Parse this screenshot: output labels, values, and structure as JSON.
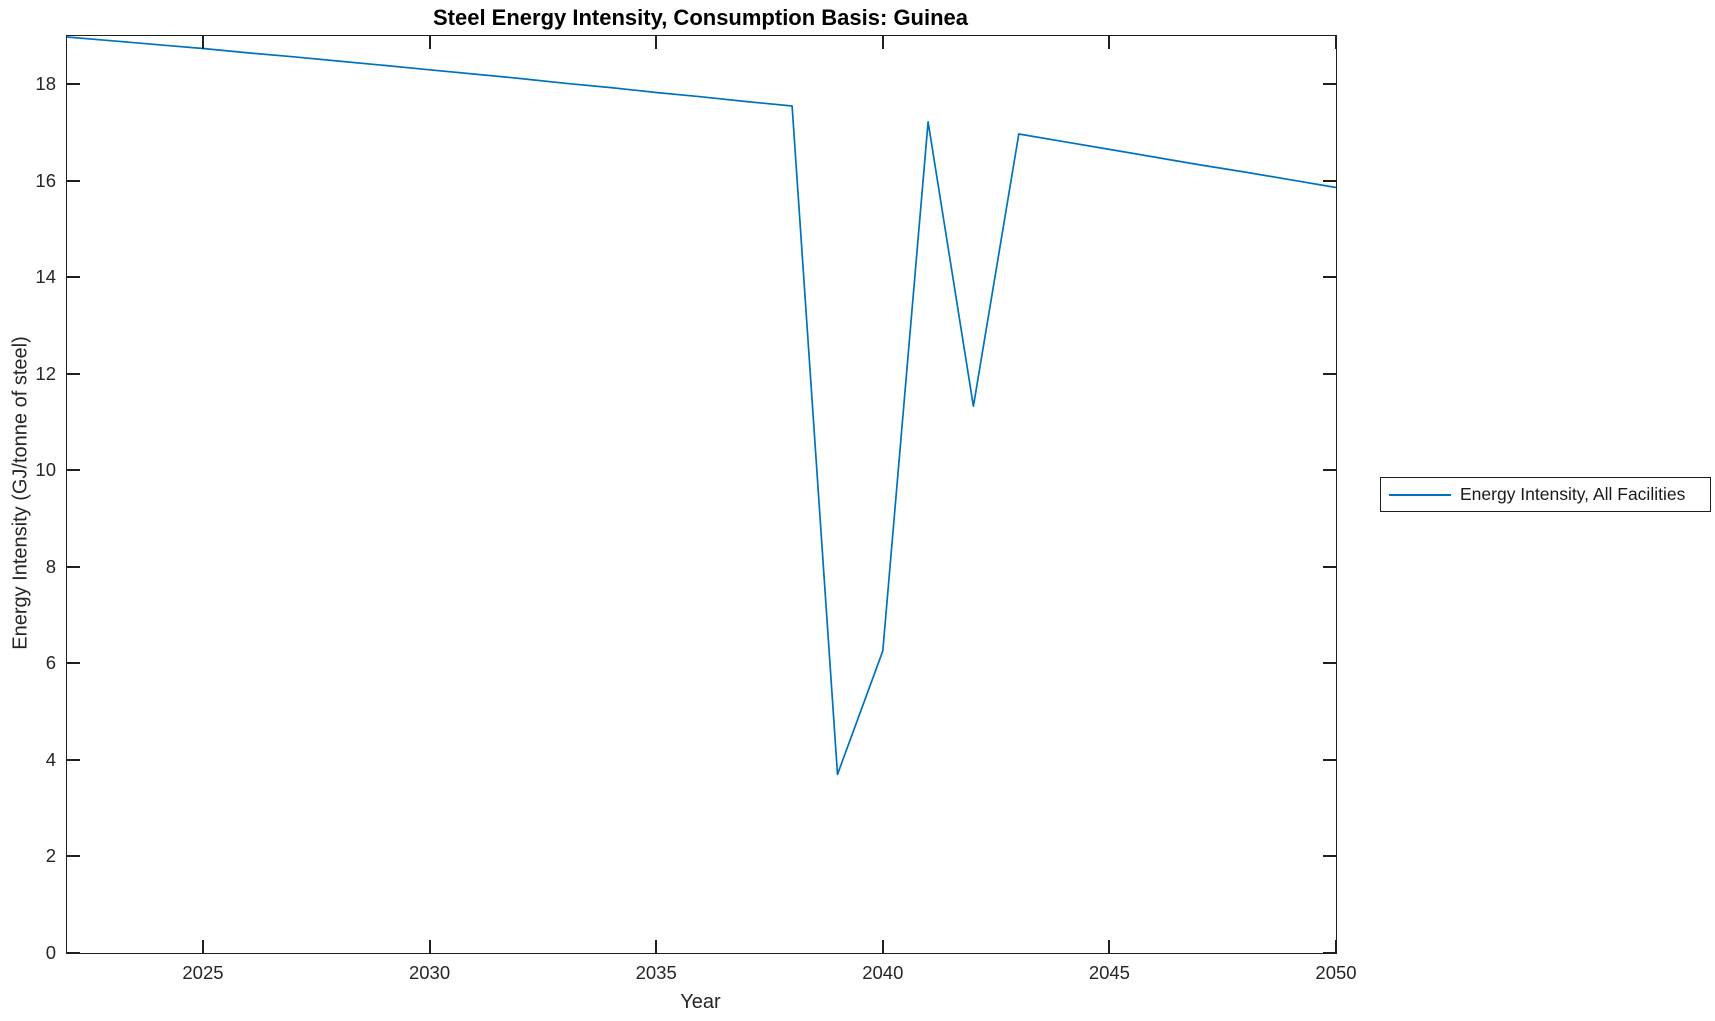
{
  "chart_data": {
    "type": "line",
    "title": "Steel Energy Intensity, Consumption Basis: Guinea",
    "xlabel": "Year",
    "ylabel": "Energy Intensity (GJ/tonne of steel)",
    "xlim": [
      2022,
      2050
    ],
    "ylim": [
      0,
      19
    ],
    "x_ticks": [
      2025,
      2030,
      2035,
      2040,
      2045,
      2050
    ],
    "y_ticks": [
      0,
      2,
      4,
      6,
      8,
      10,
      12,
      14,
      16,
      18
    ],
    "grid": false,
    "box": true,
    "tick_direction": "in",
    "legend_position": "outside-right",
    "axis_color": "#1f1f1f",
    "series": [
      {
        "name": "Energy Intensity, All Facilities",
        "color": "#0072BD",
        "x": [
          2022,
          2023,
          2024,
          2025,
          2026,
          2027,
          2028,
          2029,
          2030,
          2031,
          2032,
          2033,
          2034,
          2035,
          2036,
          2037,
          2038,
          2039,
          2040,
          2041,
          2042,
          2043,
          2044,
          2045,
          2046,
          2047,
          2048,
          2049,
          2050
        ],
        "values": [
          18.98,
          18.9,
          18.82,
          18.74,
          18.65,
          18.57,
          18.48,
          18.39,
          18.3,
          18.21,
          18.12,
          18.02,
          17.93,
          17.83,
          17.74,
          17.64,
          17.55,
          3.7,
          6.26,
          17.22,
          11.33,
          16.97,
          16.81,
          16.65,
          16.49,
          16.33,
          16.18,
          16.02,
          15.86
        ]
      }
    ]
  }
}
